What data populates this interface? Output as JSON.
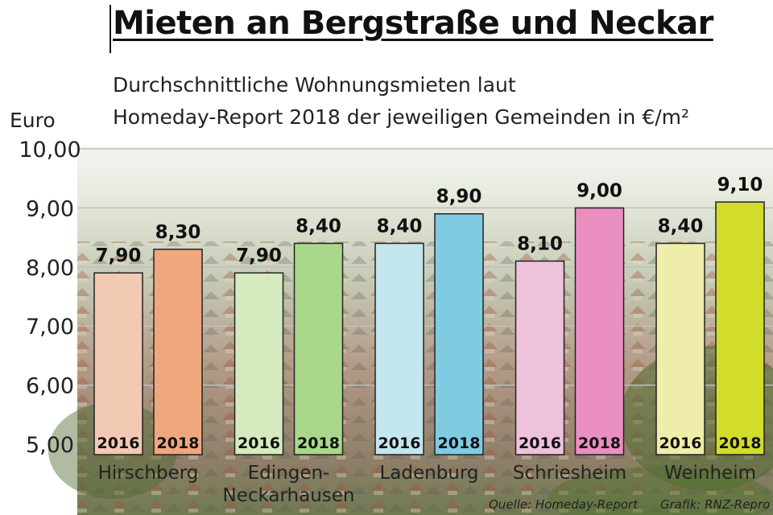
{
  "header": {
    "title": "Mieten an Bergstraße und Neckar",
    "subtitle_line1": "Durchschnittliche Wohnungsmieten laut",
    "subtitle_line2": "Homeday-Report 2018 der jeweiligen Gemeinden in €/m²"
  },
  "footer": {
    "source": "Quelle: Homeday-Report",
    "credit": "Grafik: RNZ-Repro"
  },
  "chart_data": {
    "type": "bar",
    "title": "Mieten an Bergstraße und Neckar",
    "ylabel": "Euro",
    "ylim": [
      5,
      10
    ],
    "yticks": [
      "5,00",
      "6,00",
      "7,00",
      "8,00",
      "9,00",
      "10,00"
    ],
    "grid": true,
    "series_names": [
      "2016",
      "2018"
    ],
    "groups": [
      {
        "name": "Hirschberg",
        "bars": [
          {
            "year": "2016",
            "value": 7.9,
            "label": "7,90",
            "color": "#f2c9b2"
          },
          {
            "year": "2018",
            "value": 8.3,
            "label": "8,30",
            "color": "#f0a77e"
          }
        ]
      },
      {
        "name": "Edingen-\nNeckarhausen",
        "bars": [
          {
            "year": "2016",
            "value": 7.9,
            "label": "7,90",
            "color": "#d5ebbf"
          },
          {
            "year": "2018",
            "value": 8.4,
            "label": "8,40",
            "color": "#a9d88a"
          }
        ]
      },
      {
        "name": "Ladenburg",
        "bars": [
          {
            "year": "2016",
            "value": 8.4,
            "label": "8,40",
            "color": "#c4e6ee"
          },
          {
            "year": "2018",
            "value": 8.9,
            "label": "8,90",
            "color": "#7fcbe2"
          }
        ]
      },
      {
        "name": "Schriesheim",
        "bars": [
          {
            "year": "2016",
            "value": 8.1,
            "label": "8,10",
            "color": "#efc2dc"
          },
          {
            "year": "2018",
            "value": 9.0,
            "label": "9,00",
            "color": "#ea8fbf"
          }
        ]
      },
      {
        "name": "Weinheim",
        "bars": [
          {
            "year": "2016",
            "value": 8.4,
            "label": "8,40",
            "color": "#eeeeaa"
          },
          {
            "year": "2018",
            "value": 9.1,
            "label": "9,10",
            "color": "#d2dc2a"
          }
        ]
      }
    ]
  }
}
